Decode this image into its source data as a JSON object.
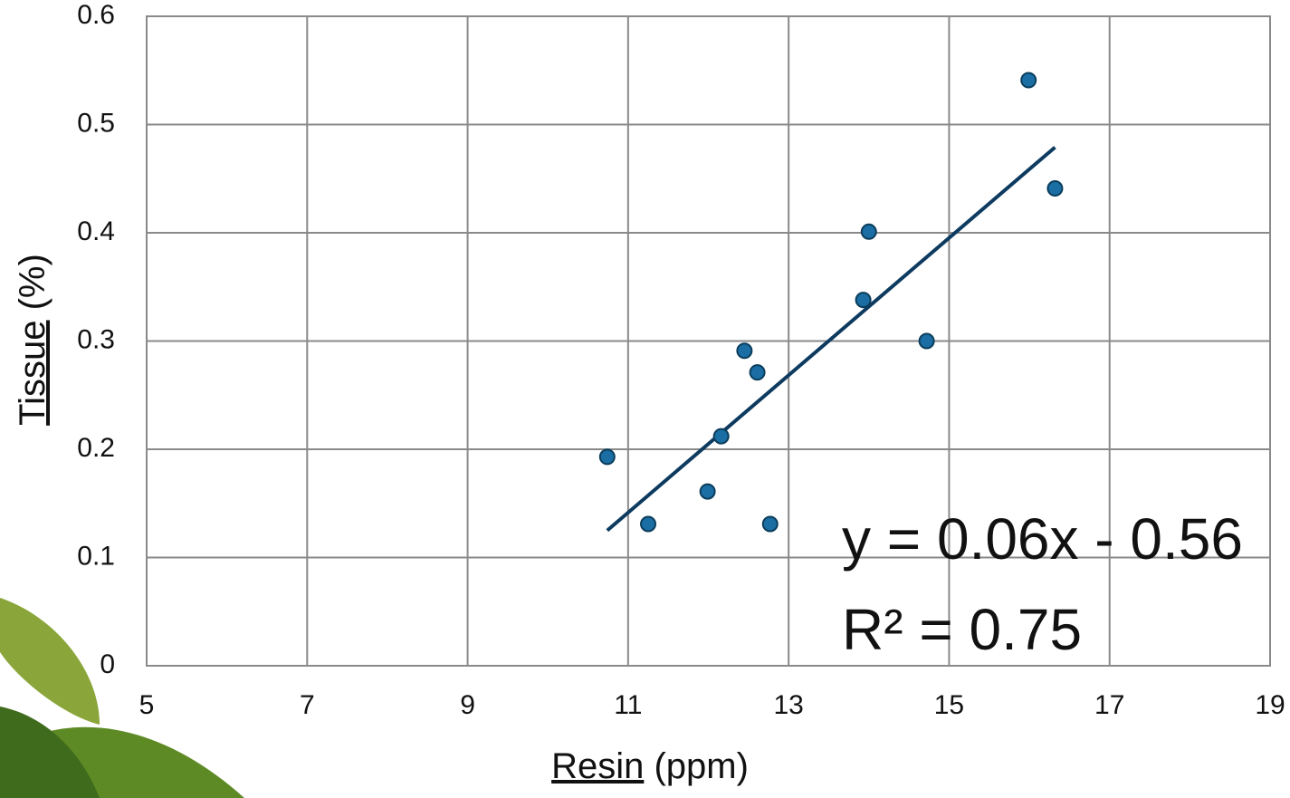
{
  "chart_data": {
    "type": "scatter",
    "xlabel_main": "Resin",
    "xlabel_unit": "(ppm)",
    "ylabel_main": "Tissue",
    "ylabel_unit": "(%)",
    "x": [
      10.74,
      11.25,
      11.99,
      12.16,
      12.45,
      12.61,
      12.77,
      13.93,
      14.0,
      14.72,
      15.99,
      16.32
    ],
    "y": [
      0.193,
      0.131,
      0.161,
      0.212,
      0.291,
      0.271,
      0.131,
      0.338,
      0.401,
      0.3,
      0.541,
      0.441
    ],
    "color": "#1a6ea3",
    "trendline": {
      "x": [
        10.74,
        16.32
      ],
      "y": [
        0.125,
        0.479
      ],
      "color": "#0d3a5f"
    },
    "annotations": [
      "y = 0.06x - 0.56",
      "R² = 0.75"
    ],
    "xlim": [
      5,
      19
    ],
    "xticks": [
      5,
      7,
      9,
      11,
      13,
      15,
      17,
      19
    ],
    "ylim": [
      0,
      0.6
    ],
    "yticks": [
      0,
      0.1,
      0.2,
      0.3,
      0.4,
      0.5,
      0.6
    ],
    "grid": true
  }
}
